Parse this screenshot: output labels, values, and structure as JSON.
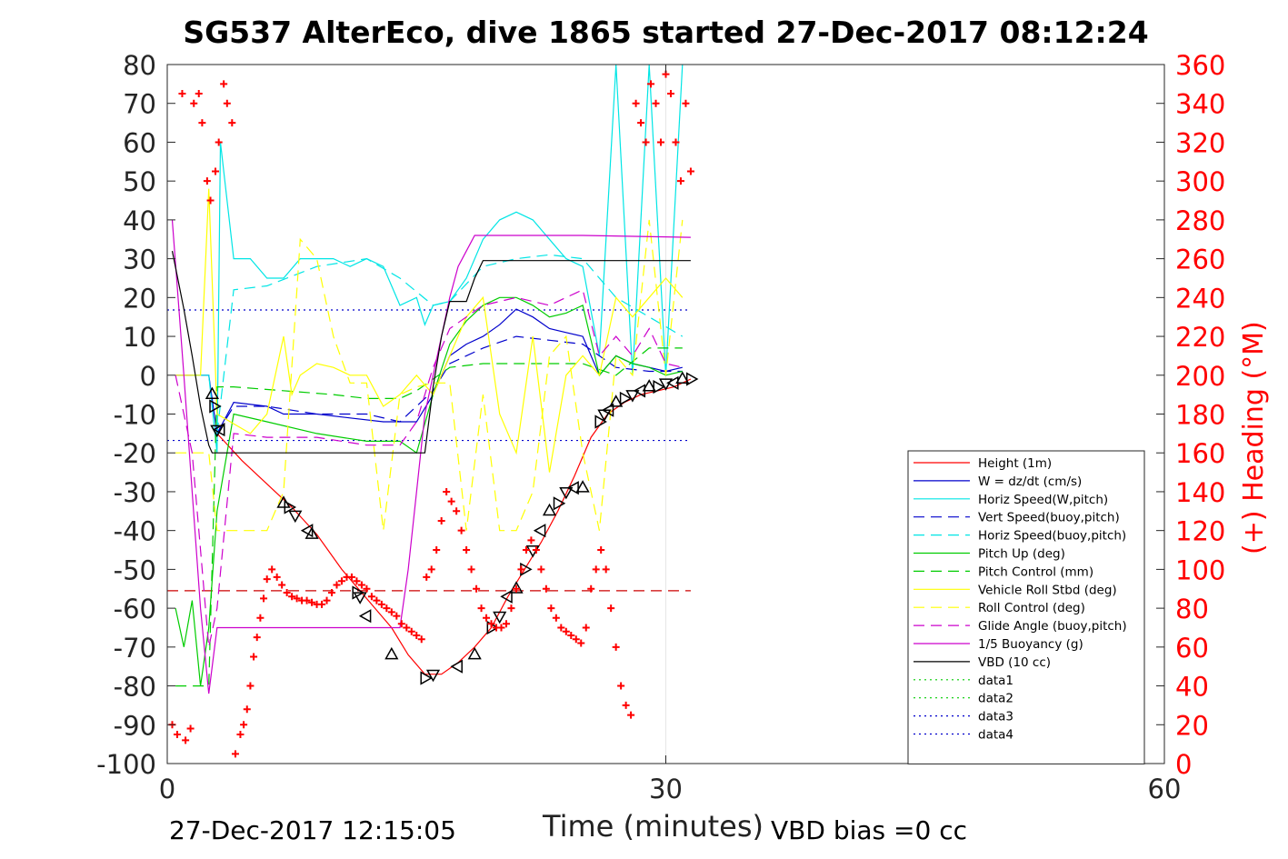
{
  "title": "SG537 AlterEco, dive 1865 started 27-Dec-2017 08:12:24",
  "footer_left": "27-Dec-2017 12:15:05",
  "footer_right": "VBD bias =0 cc",
  "chart_data": {
    "type": "line",
    "xlabel": "Time (minutes)",
    "ylabel_right": "(+) Heading (°M)",
    "xlim": [
      0,
      60
    ],
    "ylim": [
      -100,
      80
    ],
    "ylim_right": [
      0,
      360
    ],
    "xticks": [
      0,
      30,
      60
    ],
    "yticks": [
      80,
      70,
      60,
      50,
      40,
      30,
      20,
      10,
      0,
      -10,
      -20,
      -30,
      -40,
      -50,
      -60,
      -70,
      -80,
      -90,
      -100
    ],
    "yticks_right": [
      360,
      340,
      320,
      300,
      280,
      260,
      240,
      220,
      200,
      180,
      160,
      140,
      120,
      100,
      80,
      60,
      40,
      20,
      0
    ],
    "grid": false,
    "legend_position": "lower-right",
    "colors": {
      "height": "#ff0000",
      "w": "#0000cc",
      "horiz_w": "#00e5e5",
      "pitch": "#00cc00",
      "roll": "#ffff00",
      "glide": "#cc00cc",
      "buoy": "#cc00cc",
      "vbd": "#000000",
      "heading": "#ff0000"
    },
    "series": [
      {
        "name": "Height (1m)",
        "style": "solid",
        "color": "#ff0000",
        "x": [
          3.0,
          4.5,
          6.0,
          7.5,
          9.0,
          10.5,
          11.5,
          12.5,
          13.5,
          14.5,
          15.5,
          16.5,
          17.5,
          18.5,
          19.5,
          20.5,
          21.5,
          22.5,
          23.5,
          24.5,
          25.5,
          26.5,
          27.5,
          28.5,
          29.5,
          30.5,
          31.5
        ],
        "y": [
          -15,
          -22,
          -28,
          -34,
          -41,
          -50,
          -55,
          -60,
          -65,
          -72,
          -77,
          -77,
          -74,
          -70,
          -65,
          -57,
          -50,
          -43,
          -35,
          -26,
          -16,
          -10,
          -7,
          -5,
          -4,
          -3,
          -1
        ]
      },
      {
        "name": "W = dz/dt (cm/s)",
        "style": "solid",
        "color": "#0000cc",
        "x": [
          0.5,
          1.5,
          2.0,
          2.5,
          3.0,
          4.0,
          6.0,
          7.0,
          9.0,
          11.0,
          13.0,
          15.0,
          16.0,
          17.0,
          18.0,
          19.0,
          20.0,
          21.0,
          22.0,
          23.0,
          24.0,
          25.0,
          26.0,
          27.0,
          28.0,
          29.0,
          30.0,
          31.0
        ],
        "y": [
          0,
          0,
          0,
          0,
          -15,
          -7,
          -8,
          -10,
          -10,
          -11,
          -12,
          -12,
          -5,
          5,
          8,
          10,
          13,
          17,
          15,
          12,
          11,
          10,
          0,
          5,
          3,
          2,
          1,
          2
        ]
      },
      {
        "name": "Horiz Speed(W,pitch)",
        "style": "solid",
        "color": "#00e5e5",
        "x": [
          1.5,
          2.5,
          3.0,
          3.2,
          4.0,
          5.0,
          6.0,
          7.0,
          8.0,
          9.0,
          10.0,
          11.0,
          12.0,
          13.0,
          14.0,
          15.0,
          15.5,
          16.0,
          17.0,
          18.0,
          19.0,
          20.0,
          21.0,
          22.0,
          23.0,
          24.0,
          25.0,
          26.0,
          27.0,
          28.0,
          29.0,
          30.0,
          31.0
        ],
        "y": [
          0,
          0,
          -20,
          60,
          30,
          30,
          25,
          25,
          30,
          30,
          30,
          28,
          30,
          28,
          18,
          20,
          13,
          18,
          19,
          25,
          35,
          40,
          42,
          40,
          35,
          30,
          28,
          5,
          80,
          0,
          80,
          0,
          80
        ]
      },
      {
        "name": "Vert Speed(buoy,pitch)",
        "style": "dashed",
        "color": "#0000cc",
        "x": [
          3.0,
          4.0,
          6.0,
          9.0,
          12.0,
          14.0,
          16.0,
          17.0,
          19.0,
          21.0,
          23.0,
          25.0,
          27.0,
          29.0,
          31.0
        ],
        "y": [
          -15,
          -8,
          -8,
          -10,
          -10,
          -12,
          -4,
          3,
          7,
          10,
          9,
          8,
          2,
          1,
          1
        ]
      },
      {
        "name": "Horiz Speed(buoy,pitch)",
        "style": "dashed",
        "color": "#00e5e5",
        "x": [
          3.0,
          4.0,
          6.0,
          9.0,
          12.0,
          14.0,
          16.0,
          17.0,
          19.0,
          21.0,
          23.0,
          25.0,
          27.0,
          29.0,
          31.0
        ],
        "y": [
          -15,
          22,
          23,
          28,
          30,
          25,
          18,
          19,
          28,
          30,
          31,
          30,
          20,
          15,
          10
        ]
      },
      {
        "name": "Pitch Up (deg)",
        "style": "solid",
        "color": "#00cc00",
        "x": [
          0.5,
          1.0,
          1.5,
          2.0,
          2.5,
          3.0,
          4.0,
          6.0,
          9.0,
          12.0,
          14.0,
          15.0,
          16.0,
          17.0,
          18.0,
          19.0,
          20.0,
          21.0,
          22.0,
          23.0,
          24.0,
          25.0,
          26.0,
          27.0,
          28.0,
          29.0,
          30.0,
          31.0
        ],
        "y": [
          -60,
          -70,
          -58,
          -80,
          -65,
          -35,
          -10,
          -12,
          -15,
          -17,
          -17,
          -20,
          -5,
          8,
          14,
          18,
          20,
          20,
          18,
          15,
          16,
          18,
          0,
          5,
          3,
          2,
          0,
          1
        ]
      },
      {
        "name": "Pitch Control (mm)",
        "style": "dashed",
        "color": "#00cc00",
        "x": [
          0.5,
          2.5,
          3.0,
          4.0,
          10.0,
          12.0,
          14.0,
          15.0,
          16.0,
          17.0,
          19.0,
          21.0,
          23.0,
          25.0,
          27.0,
          29.0,
          31.0
        ],
        "y": [
          -80,
          -80,
          -3,
          -3,
          -5,
          -6,
          -6,
          -4,
          -1,
          2,
          3,
          3,
          3,
          3,
          0,
          7,
          7
        ]
      },
      {
        "name": "Vehicle Roll Stbd (deg)",
        "style": "solid",
        "color": "#ffff00",
        "x": [
          0.5,
          1.5,
          2.0,
          2.5,
          3.0,
          5.0,
          6.0,
          7.0,
          7.5,
          8.0,
          9.0,
          10.0,
          11.0,
          12.0,
          13.0,
          14.0,
          15.0,
          16.0,
          17.0,
          18.0,
          19.0,
          20.0,
          21.0,
          22.0,
          23.0,
          24.0,
          25.0,
          26.0,
          27.0,
          28.0,
          29.0,
          30.0,
          31.0
        ],
        "y": [
          0,
          0,
          0,
          48,
          -10,
          -15,
          -10,
          10,
          -5,
          0,
          3,
          2,
          0,
          0,
          -8,
          -5,
          0,
          -5,
          5,
          15,
          20,
          -10,
          -20,
          10,
          -25,
          0,
          5,
          0,
          20,
          15,
          20,
          25,
          20
        ]
      },
      {
        "name": "Roll Control (deg)",
        "style": "dashed",
        "color": "#ffff00",
        "x": [
          0.5,
          2.5,
          3.0,
          4.5,
          6.0,
          7.0,
          8.0,
          9.0,
          10.0,
          11.0,
          12.0,
          13.0,
          14.0,
          15.0,
          16.0,
          17.0,
          18.0,
          19.0,
          20.0,
          21.0,
          22.0,
          23.0,
          24.0,
          25.0,
          26.0,
          27.0,
          28.0,
          29.0,
          30.0,
          31.0
        ],
        "y": [
          -20,
          -20,
          -40,
          -40,
          -40,
          -30,
          35,
          30,
          10,
          -2,
          -2,
          -40,
          -5,
          -3,
          -2,
          -2,
          -40,
          -5,
          -40,
          -40,
          -30,
          5,
          10,
          -20,
          -40,
          5,
          0,
          40,
          0,
          40
        ]
      },
      {
        "name": "Glide Angle (buoy,pitch)",
        "style": "dashed",
        "color": "#cc00cc",
        "x": [
          0.5,
          1.0,
          1.5,
          2.0,
          2.5,
          3.0,
          4.0,
          6.0,
          9.0,
          12.0,
          14.0,
          15.0,
          16.0,
          17.0,
          18.0,
          19.0,
          20.0,
          21.0,
          22.0,
          23.0,
          24.0,
          25.0,
          26.0,
          27.0,
          28.0,
          29.0,
          30.0,
          31.0
        ],
        "y": [
          0,
          -10,
          -20,
          -45,
          -70,
          -60,
          -15,
          -16,
          -16,
          -18,
          -18,
          -12,
          2,
          12,
          15,
          18,
          19,
          20,
          19,
          18,
          20,
          22,
          5,
          10,
          5,
          12,
          3,
          2
        ]
      },
      {
        "name": "1/5 Buoyancy (g)",
        "style": "solid",
        "color": "#cc00cc",
        "x": [
          0.3,
          1.0,
          1.5,
          2.0,
          2.5,
          3.0,
          3.5,
          14.0,
          14.5,
          15.0,
          15.5,
          16.0,
          16.5,
          17.0,
          17.5,
          18.5,
          25.0,
          31.5
        ],
        "y": [
          40,
          0,
          -30,
          -60,
          -82,
          -65,
          -65,
          -65,
          -50,
          -30,
          -10,
          0,
          10,
          20,
          28,
          36,
          36,
          35.5
        ]
      },
      {
        "name": "VBD (10 cc)",
        "style": "solid",
        "color": "#000000",
        "x": [
          0.3,
          1.0,
          1.5,
          2.0,
          2.5,
          2.7,
          14.0,
          15.5,
          16.0,
          16.5,
          17.0,
          18.0,
          18.5,
          19.0,
          31.5
        ],
        "y": [
          32,
          17,
          5,
          -8,
          -18,
          -20,
          -20,
          -20,
          -3,
          10,
          19,
          19,
          25,
          29.5,
          29.5
        ]
      },
      {
        "name": "data1",
        "style": "dotted",
        "color": "#00cc00",
        "x": [],
        "y": []
      },
      {
        "name": "data2",
        "style": "dotted",
        "color": "#00cc00",
        "x": [],
        "y": []
      },
      {
        "name": "data3",
        "style": "dotted",
        "color": "#0000cc",
        "x": [],
        "y": []
      },
      {
        "name": "data4",
        "style": "dotted",
        "color": "#0000cc",
        "x": [],
        "y": []
      }
    ],
    "reference_lines": [
      {
        "y": 16.8,
        "style": "dotted",
        "color": "#0000cc",
        "x0": 0,
        "x1": 31.5
      },
      {
        "y": -16.8,
        "style": "dotted",
        "color": "#0000cc",
        "x0": 0,
        "x1": 31.5
      },
      {
        "y": -55.5,
        "style": "dashed",
        "color": "#cc0000",
        "x0": 0,
        "x1": 31.5
      }
    ],
    "triangle_markers": {
      "x": [
        2.7,
        2.8,
        3.0,
        3.2,
        7.0,
        7.3,
        7.7,
        8.5,
        8.7,
        11.4,
        11.6,
        12.0,
        13.5,
        15.5,
        16.0,
        17.5,
        18.5,
        19.5,
        20.0,
        20.5,
        21.0,
        21.5,
        22.0,
        22.5,
        23.0,
        23.5,
        24.0,
        24.5,
        25.0,
        26.0,
        26.3,
        26.6,
        27.0,
        27.5,
        28.0,
        28.5,
        29.0,
        29.5,
        30.0,
        30.5,
        31.0,
        31.5
      ],
      "y": [
        -5,
        -8,
        -14,
        -14,
        -33,
        -34,
        -36,
        -40,
        -41,
        -56,
        -57,
        -62,
        -72,
        -78,
        -77,
        -75,
        -72,
        -65,
        -62,
        -57,
        -55,
        -50,
        -45,
        -40,
        -35,
        -33,
        -30,
        -29,
        -29,
        -12,
        -10,
        -9,
        -7,
        -6,
        -5,
        -4,
        -3,
        -3,
        -2,
        -2,
        -1,
        -1
      ]
    },
    "heading_points": {
      "x": [
        0.3,
        0.6,
        0.9,
        1.1,
        1.4,
        1.6,
        1.9,
        2.1,
        2.4,
        2.6,
        2.9,
        3.1,
        3.4,
        3.6,
        3.9,
        4.1,
        4.4,
        4.6,
        4.8,
        5.0,
        5.2,
        5.4,
        5.6,
        5.8,
        6.0,
        6.3,
        6.6,
        6.9,
        7.2,
        7.5,
        7.8,
        8.1,
        8.4,
        8.7,
        9.0,
        9.3,
        9.6,
        9.9,
        10.2,
        10.5,
        10.8,
        11.1,
        11.4,
        11.7,
        12.0,
        12.3,
        12.6,
        12.9,
        13.2,
        13.5,
        13.8,
        14.1,
        14.4,
        14.7,
        15.0,
        15.3,
        15.6,
        15.9,
        16.2,
        16.5,
        16.8,
        17.1,
        17.4,
        17.7,
        18.0,
        18.3,
        18.6,
        18.9,
        19.2,
        19.5,
        19.8,
        20.1,
        20.4,
        20.7,
        21.0,
        21.3,
        21.6,
        21.9,
        22.2,
        22.5,
        22.8,
        23.1,
        23.4,
        23.7,
        24.0,
        24.3,
        24.6,
        24.9,
        25.2,
        25.5,
        25.8,
        26.1,
        26.4,
        26.7,
        27.0,
        27.3,
        27.6,
        27.9,
        28.2,
        28.5,
        28.8,
        29.1,
        29.4,
        29.7,
        30.0,
        30.3,
        30.6,
        30.9,
        31.2,
        31.5
      ],
      "y": [
        20,
        15,
        345,
        12,
        18,
        340,
        345,
        330,
        300,
        290,
        305,
        320,
        350,
        340,
        330,
        5,
        15,
        20,
        28,
        40,
        55,
        65,
        75,
        85,
        95,
        100,
        96,
        92,
        88,
        86,
        85,
        84,
        84,
        83,
        82,
        82,
        84,
        88,
        92,
        94,
        96,
        96,
        94,
        92,
        90,
        86,
        84,
        82,
        80,
        78,
        76,
        72,
        70,
        68,
        66,
        64,
        96,
        100,
        110,
        125,
        140,
        135,
        130,
        120,
        110,
        100,
        90,
        80,
        75,
        72,
        70,
        70,
        72,
        80,
        90,
        100,
        110,
        115,
        110,
        100,
        90,
        80,
        75,
        70,
        68,
        66,
        64,
        62,
        70,
        90,
        100,
        110,
        100,
        80,
        60,
        40,
        30,
        25,
        340,
        330,
        320,
        350,
        340,
        320,
        355,
        345,
        320,
        300,
        340,
        305
      ]
    }
  }
}
